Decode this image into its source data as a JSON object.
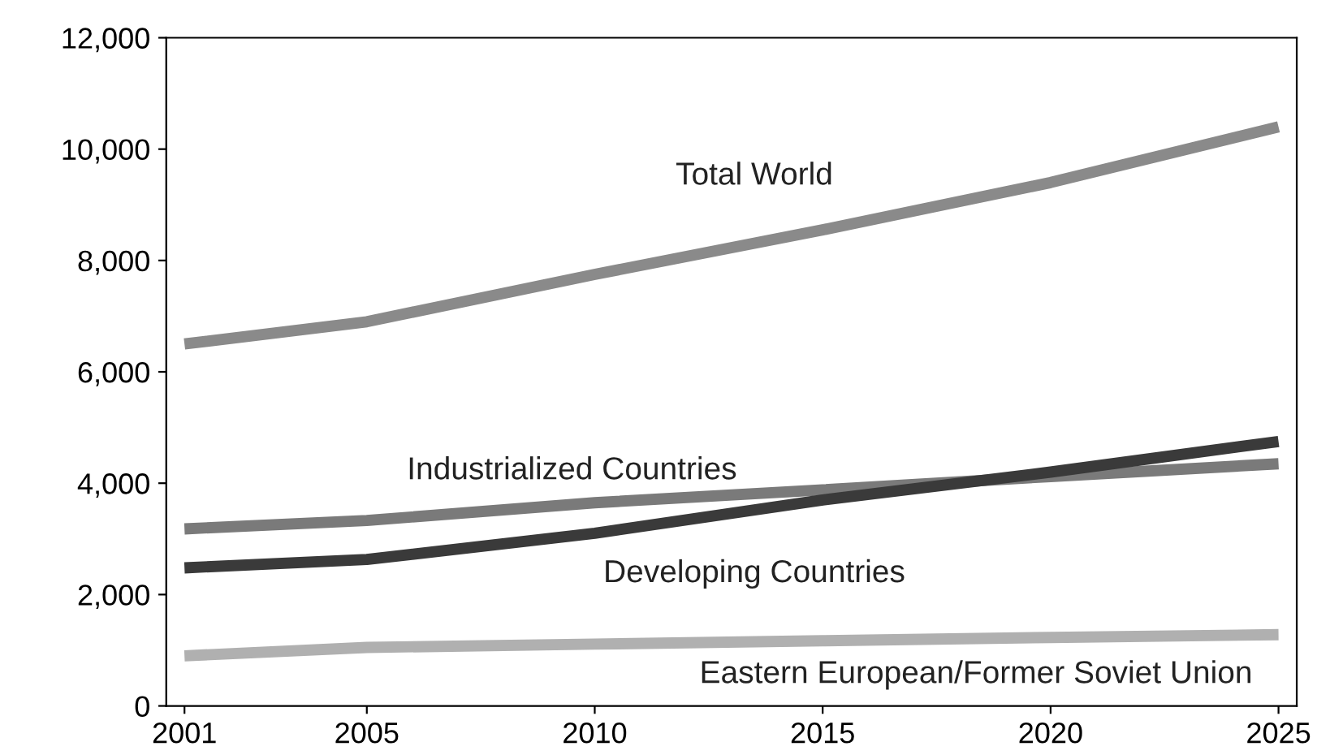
{
  "chart_data": {
    "type": "line",
    "x": [
      2001,
      2005,
      2010,
      2015,
      2020,
      2025
    ],
    "xlim": [
      2000.6,
      2025.4
    ],
    "xticks": [
      2001,
      2005,
      2010,
      2015,
      2020,
      2025
    ],
    "ylim": [
      0,
      12000
    ],
    "yticks": [
      {
        "value": 0,
        "label": "0"
      },
      {
        "value": 2000,
        "label": "2,000"
      },
      {
        "value": 4000,
        "label": "4,000"
      },
      {
        "value": 6000,
        "label": "6,000"
      },
      {
        "value": 8000,
        "label": "8,000"
      },
      {
        "value": 10000,
        "label": "10,000"
      },
      {
        "value": 12000,
        "label": "12,000"
      }
    ],
    "grid": false,
    "legend": false,
    "marker": "none",
    "line_style": "solid",
    "series": [
      {
        "name": "Total World",
        "color": "#8a8a8a",
        "values": [
          6500,
          6900,
          7750,
          8550,
          9400,
          10400
        ]
      },
      {
        "name": "Industrialized Countries",
        "color": "#7a7a7a",
        "values": [
          3180,
          3330,
          3650,
          3880,
          4120,
          4350
        ]
      },
      {
        "name": "Developing Countries",
        "color": "#3a3a3a",
        "values": [
          2480,
          2630,
          3100,
          3700,
          4200,
          4750
        ]
      },
      {
        "name": "Eastern European/Former Soviet Union",
        "color": "#b0b0b0",
        "values": [
          900,
          1050,
          1110,
          1170,
          1230,
          1280
        ]
      }
    ]
  }
}
